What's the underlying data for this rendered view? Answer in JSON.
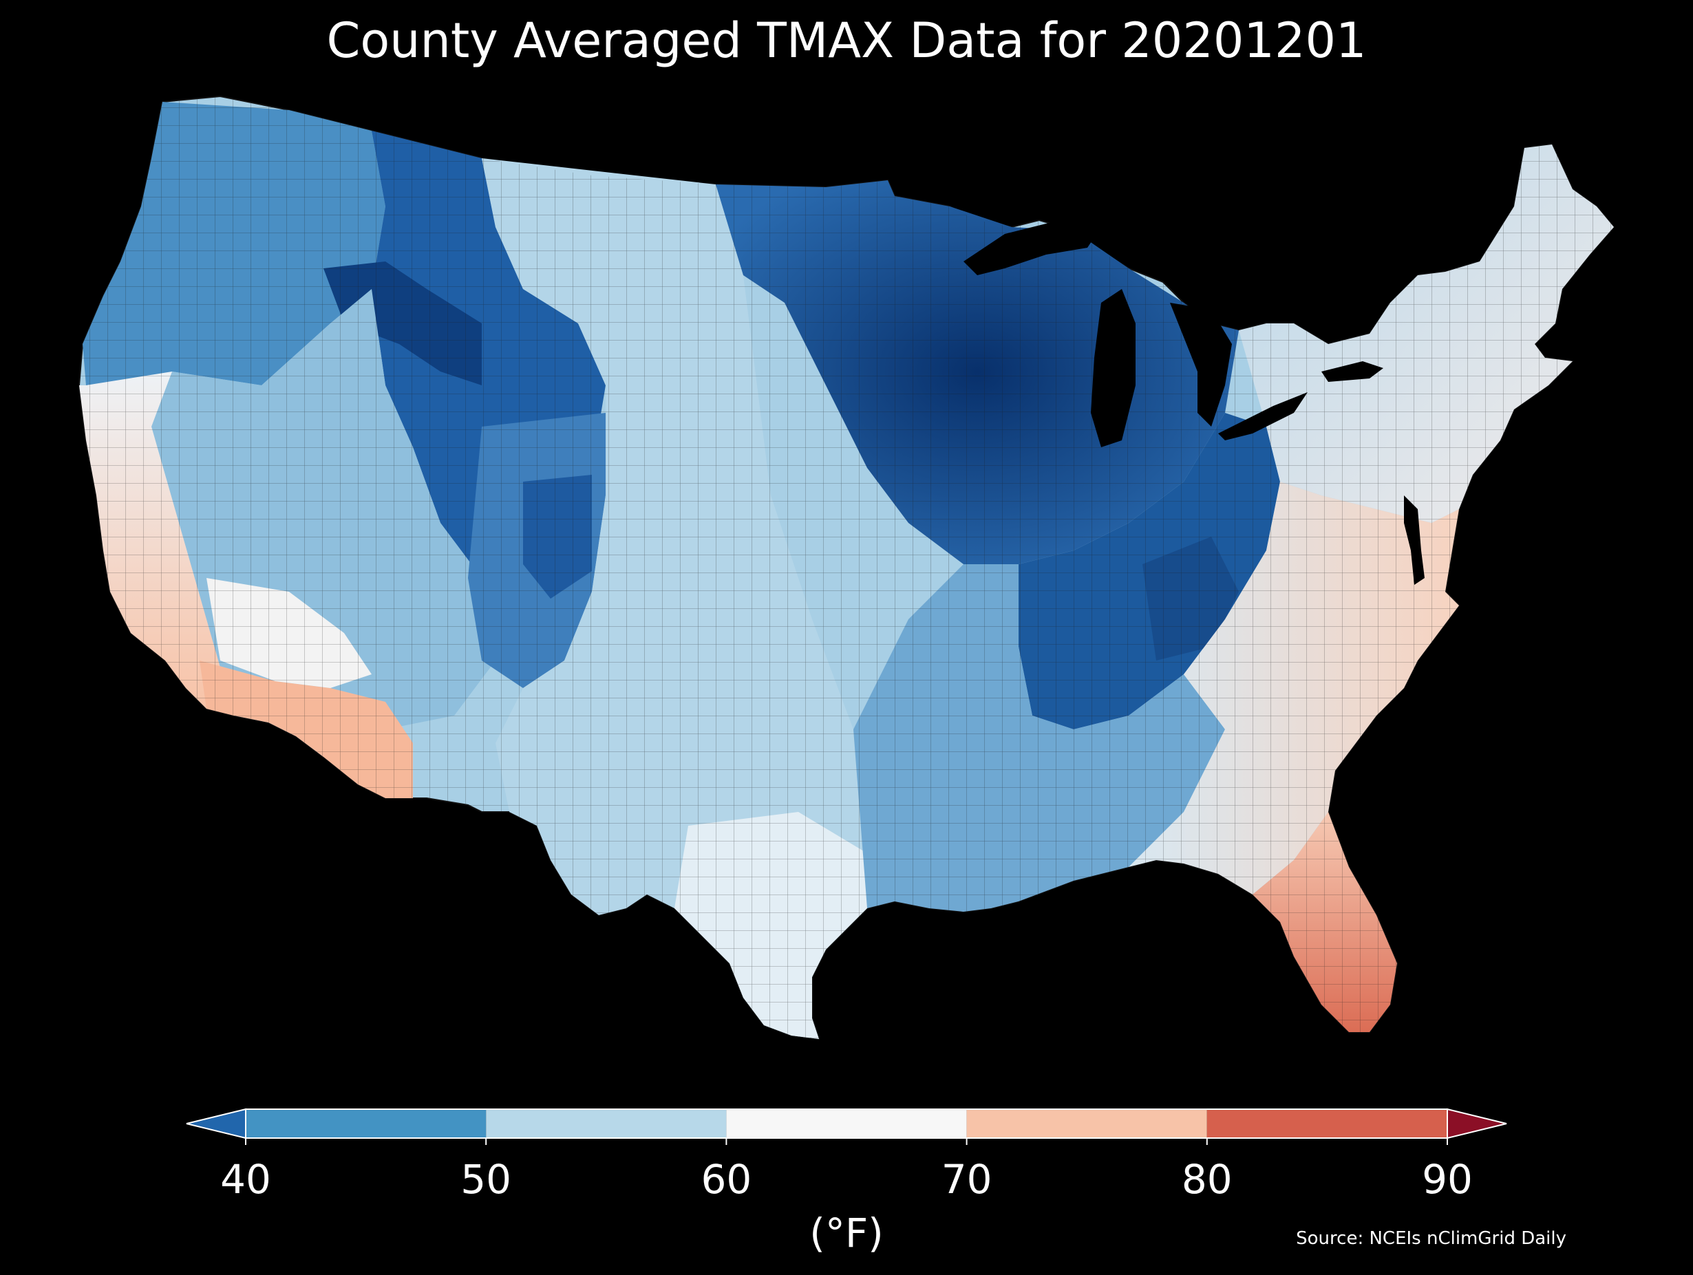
{
  "title": "County Averaged TMAX Data for 20201201",
  "colorbar": {
    "ticks": [
      "40",
      "50",
      "60",
      "70",
      "80",
      "90"
    ],
    "unit": "(°F)",
    "bins": [
      {
        "range": [
          40,
          50
        ],
        "color": "#4393c3"
      },
      {
        "range": [
          50,
          60
        ],
        "color": "#b7d8e9"
      },
      {
        "range": [
          60,
          70
        ],
        "color": "#f7f7f7"
      },
      {
        "range": [
          70,
          80
        ],
        "color": "#f7c3a8"
      },
      {
        "range": [
          80,
          90
        ],
        "color": "#d6604d"
      }
    ],
    "extend_low_color": "#2166ac",
    "extend_high_color": "#8b0f26"
  },
  "source": "Source: NCEIs nClimGrid Daily",
  "map": {
    "region": "Contiguous United States",
    "variable": "TMAX",
    "date": "20201201",
    "background": "#000000",
    "county_border_color": "#1a1a1a",
    "regional_pattern": [
      {
        "region": "Upper Midwest / Great Lakes",
        "approx_value_f": 35,
        "color": "#08306b"
      },
      {
        "region": "Ohio Valley / Appalachians",
        "approx_value_f": 40,
        "color": "#1c5a9e"
      },
      {
        "region": "Northern Rockies",
        "approx_value_f": 40,
        "color": "#1f5fa6"
      },
      {
        "region": "Pacific Northwest",
        "approx_value_f": 46,
        "color": "#4a8fc4"
      },
      {
        "region": "Great Plains",
        "approx_value_f": 55,
        "color": "#a8cfe5"
      },
      {
        "region": "Gulf Coast",
        "approx_value_f": 62,
        "color": "#e8f0f6"
      },
      {
        "region": "Desert Southwest",
        "approx_value_f": 72,
        "color": "#f6b89a"
      },
      {
        "region": "Southern Florida",
        "approx_value_f": 80,
        "color": "#dd7159"
      }
    ]
  }
}
